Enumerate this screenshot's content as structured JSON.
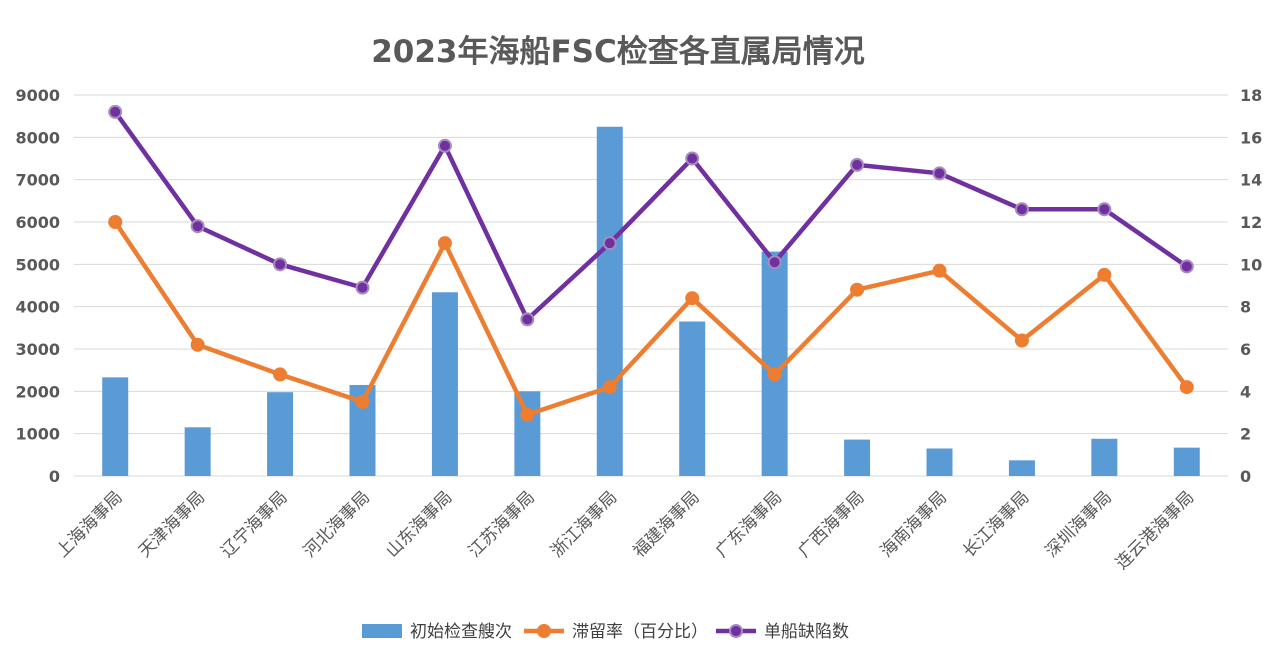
{
  "chart_data": {
    "type": "bar",
    "title": "2023年海船FSC检查各直属局情况",
    "categories": [
      "上海海事局",
      "天津海事局",
      "辽宁海事局",
      "河北海事局",
      "山东海事局",
      "江苏海事局",
      "浙江海事局",
      "福建海事局",
      "广东海事局",
      "广西海事局",
      "海南海事局",
      "长江海事局",
      "深圳海事局",
      "连云港海事局"
    ],
    "series": [
      {
        "name": "初始检查艘次",
        "type": "bar",
        "axis": "left",
        "color": "#5b9bd5",
        "values": [
          2330,
          1150,
          1980,
          2150,
          4340,
          2000,
          8250,
          3650,
          5300,
          860,
          650,
          370,
          880,
          670
        ]
      },
      {
        "name": "滞留率（百分比）",
        "type": "line",
        "axis": "right",
        "color": "#ed7d31",
        "values": [
          12.0,
          6.2,
          4.8,
          3.5,
          11.0,
          2.9,
          4.2,
          8.4,
          4.8,
          8.8,
          9.7,
          6.4,
          9.5,
          4.2
        ]
      },
      {
        "name": "单船缺陷数",
        "type": "line",
        "axis": "right",
        "color": "#7030a0",
        "values": [
          17.2,
          11.8,
          10.0,
          8.9,
          15.6,
          7.4,
          11.0,
          15.0,
          10.1,
          14.7,
          14.3,
          12.6,
          12.6,
          9.9
        ]
      }
    ],
    "yaxis_left": {
      "min": 0,
      "max": 9000,
      "ticks": [
        "0",
        "1000",
        "2000",
        "3000",
        "4000",
        "5000",
        "6000",
        "7000",
        "8000",
        "9000"
      ]
    },
    "yaxis_right": {
      "min": 0,
      "max": 18,
      "ticks": [
        "0",
        "2",
        "4",
        "6",
        "8",
        "10",
        "12",
        "14",
        "16",
        "18"
      ]
    },
    "grid": true,
    "legend_position": "bottom"
  }
}
